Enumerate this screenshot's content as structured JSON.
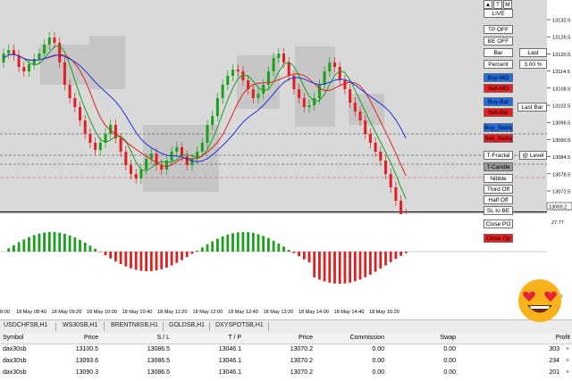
{
  "chart": {
    "price_axis": [
      "13132.5",
      "13126.5",
      "13120.5",
      "13114.5",
      "13108.5",
      "13102.5",
      "13096.5",
      "13090.5",
      "13084.5",
      "13078.5",
      "13072.5",
      "13066.5"
    ],
    "current_price": "13069.2",
    "oscillator_top_label": "27.77",
    "oscillator_bottom_label": "0.00",
    "time_axis": [
      "18 May 08:40",
      "18 May 09:20",
      "18 May 10:00",
      "18 May 10:40",
      "18 May 11:20",
      "18 May 12:00",
      "18 May 12:40",
      "18 May 13:20",
      "18 May 14:00",
      "18 May 14:40",
      "18 May 15:20"
    ],
    "time_axis_left_fragment": "8:00",
    "colors": {
      "fast_ma": "#1aa01a",
      "mid_ma": "#e02020",
      "slow_ma": "#2030e0",
      "bull": "#1aa01a",
      "bear": "#e02020",
      "button_blue": "#1f6ee8",
      "button_red": "#ee1c1c"
    }
  },
  "controls": {
    "top_arrows": [
      "▲",
      "T",
      "M"
    ],
    "live": "LIVE",
    "tp_off": "TP OFF",
    "be_off": "BE OFF",
    "bar": "Bar",
    "last": "Last",
    "percent": "Percent",
    "percent_value": "3.00 %",
    "buy_mo": "Buy-MO",
    "sell_mo": "Sell-MO",
    "buy_bar": "Buy-Bar",
    "sell_bar": "Sell-Bar",
    "last_bar": "Last Bar",
    "buy_swing": "Buy_Swing",
    "sell_swing": "Sell_Swing",
    "t_fractal": "T-Fractal",
    "at_level": "@ Level",
    "t_candle": "T-Candle",
    "nibble": "Nibble",
    "third_off": "Third Off",
    "half_off": "Half Off",
    "sl_to_be": "SL to BE",
    "close_po": "Close PO",
    "close_op": "Close Op"
  },
  "symbol_tabs": [
    "USDCHFSB,H1",
    "WS30SB,H1",
    "BRENTN8SB,H1",
    "GOLDSB,H1",
    "DXYSPOTSB,H1"
  ],
  "trade_table": {
    "headers": [
      "Symbol",
      "Price",
      "S / L",
      "T / P",
      "Price",
      "Commission",
      "Swap",
      "Profit"
    ],
    "rows": [
      [
        "dax30sb",
        "13100.5",
        "13086.5",
        "13046.1",
        "13070.2",
        "0.00",
        "0.00",
        "303"
      ],
      [
        "dax30sb",
        "13093.6",
        "13086.5",
        "13046.1",
        "13070.2",
        "0.00",
        "0.00",
        "234"
      ],
      [
        "dax30sb",
        "13090.3",
        "13086.5",
        "13046.1",
        "13070.2",
        "0.00",
        "0.00",
        "201"
      ]
    ]
  },
  "emoji": "heart-eyes-emoji"
}
